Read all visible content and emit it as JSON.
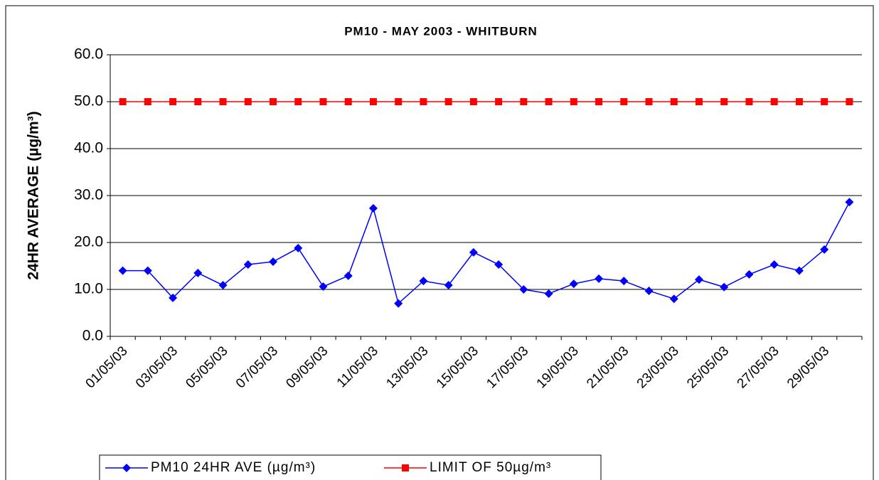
{
  "chart_data": {
    "type": "line",
    "title": "PM10 - MAY 2003 - WHITBURN",
    "y_label": "24HR AVERAGE (µg/m³)",
    "categories": [
      "01/05/03",
      null,
      "03/05/03",
      null,
      "05/05/03",
      null,
      "07/05/03",
      null,
      "09/05/03",
      null,
      "11/05/03",
      null,
      "13/05/03",
      null,
      "15/05/03",
      null,
      "17/05/03",
      null,
      "19/05/03",
      null,
      "21/05/03",
      null,
      "23/05/03",
      null,
      "25/05/03",
      null,
      "27/05/03",
      null,
      "29/05/03",
      null
    ],
    "series": [
      {
        "name": "PM10 24HR AVE (µg/m³)",
        "color": "#0000ff",
        "marker": "diamond",
        "values": [
          14.0,
          14.0,
          8.2,
          13.5,
          10.9,
          15.3,
          15.9,
          18.8,
          10.6,
          12.9,
          27.3,
          7.0,
          11.8,
          10.9,
          17.9,
          15.3,
          10.0,
          9.1,
          11.2,
          12.3,
          11.8,
          9.7,
          8.0,
          12.1,
          10.5,
          13.2,
          15.3,
          14.0,
          18.5,
          28.6
        ]
      },
      {
        "name": "LIMIT OF 50µg/m³",
        "color": "#ff0000",
        "marker": "square",
        "values": [
          50,
          50,
          50,
          50,
          50,
          50,
          50,
          50,
          50,
          50,
          50,
          50,
          50,
          50,
          50,
          50,
          50,
          50,
          50,
          50,
          50,
          50,
          50,
          50,
          50,
          50,
          50,
          50,
          50,
          50
        ]
      }
    ],
    "ylim": [
      0,
      60
    ],
    "yticks": [
      {
        "value": 0,
        "label": "0.0"
      },
      {
        "value": 10,
        "label": "10.0"
      },
      {
        "value": 20,
        "label": "20.0"
      },
      {
        "value": 30,
        "label": "30.0"
      },
      {
        "value": 40,
        "label": "40.0"
      },
      {
        "value": 50,
        "label": "50.0"
      },
      {
        "value": 60,
        "label": "60.0"
      }
    ],
    "grid": true,
    "legend": "bottom"
  }
}
